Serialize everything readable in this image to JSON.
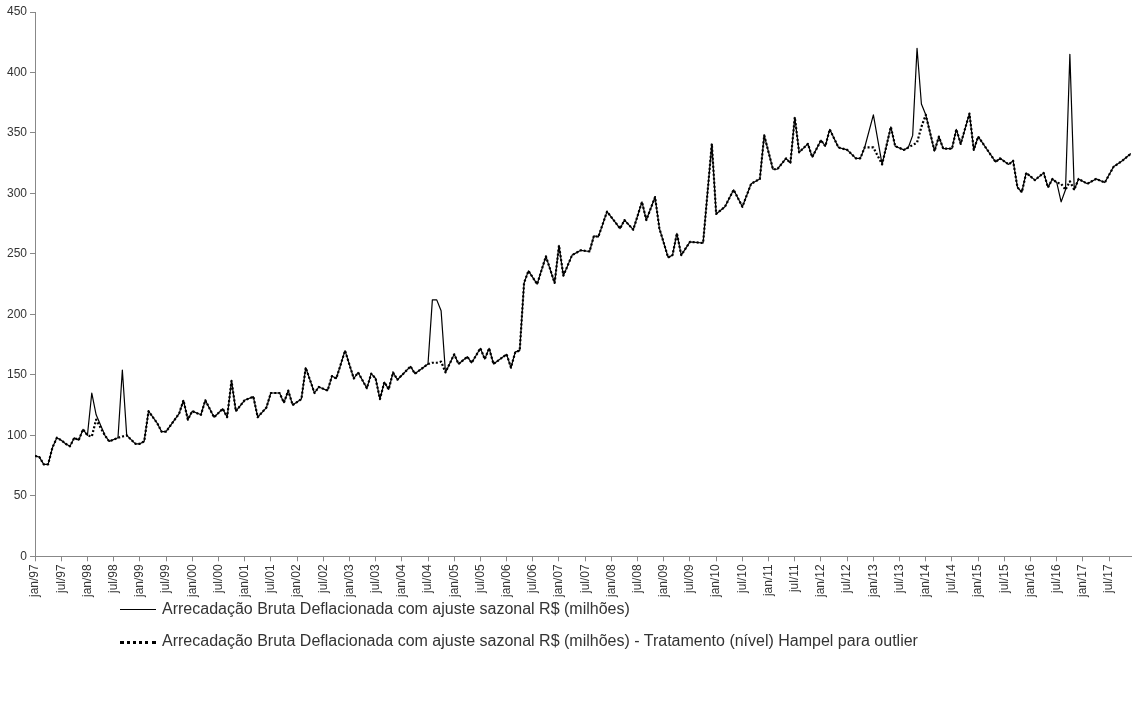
{
  "chart_data": {
    "type": "line",
    "x": [
      "1997-01",
      "1997-02",
      "1997-03",
      "1997-04",
      "1997-05",
      "1997-06",
      "1997-07",
      "1997-08",
      "1997-09",
      "1997-10",
      "1997-11",
      "1997-12",
      "1998-01",
      "1998-02",
      "1998-03",
      "1998-05",
      "1998-06",
      "1998-08",
      "1998-09",
      "1998-10",
      "1998-12",
      "1999-01",
      "1999-02",
      "1999-03",
      "1999-05",
      "1999-06",
      "1999-07",
      "1999-09",
      "1999-10",
      "1999-11",
      "1999-12",
      "2000-01",
      "2000-03",
      "2000-04",
      "2000-06",
      "2000-08",
      "2000-09",
      "2000-10",
      "2000-11",
      "2001-01",
      "2001-03",
      "2001-04",
      "2001-06",
      "2001-07",
      "2001-09",
      "2001-10",
      "2001-11",
      "2001-12",
      "2002-02",
      "2002-03",
      "2002-05",
      "2002-06",
      "2002-08",
      "2002-09",
      "2002-10",
      "2002-12",
      "2003-02",
      "2003-03",
      "2003-05",
      "2003-06",
      "2003-07",
      "2003-08",
      "2003-09",
      "2003-10",
      "2003-11",
      "2003-12",
      "2004-03",
      "2004-04",
      "2004-07",
      "2004-08",
      "2004-09",
      "2004-10",
      "2004-11",
      "2005-01",
      "2005-02",
      "2005-04",
      "2005-05",
      "2005-07",
      "2005-08",
      "2005-09",
      "2005-10",
      "2006-01",
      "2006-02",
      "2006-03",
      "2006-04",
      "2006-05",
      "2006-06",
      "2006-08",
      "2006-10",
      "2006-12",
      "2007-01",
      "2007-02",
      "2007-04",
      "2007-06",
      "2007-08",
      "2007-09",
      "2007-10",
      "2007-12",
      "2008-03",
      "2008-04",
      "2008-06",
      "2008-08",
      "2008-09",
      "2008-11",
      "2008-12",
      "2009-02",
      "2009-03",
      "2009-04",
      "2009-05",
      "2009-07",
      "2009-10",
      "2009-12",
      "2010-01",
      "2010-03",
      "2010-05",
      "2010-07",
      "2010-09",
      "2010-11",
      "2010-12",
      "2011-02",
      "2011-03",
      "2011-05",
      "2011-06",
      "2011-07",
      "2011-08",
      "2011-10",
      "2011-11",
      "2012-01",
      "2012-02",
      "2012-03",
      "2012-05",
      "2012-07",
      "2012-09",
      "2012-10",
      "2012-11",
      "2013-01",
      "2013-03",
      "2013-05",
      "2013-06",
      "2013-08",
      "2013-09",
      "2013-10",
      "2013-11",
      "2013-12",
      "2014-01",
      "2014-03",
      "2014-04",
      "2014-05",
      "2014-07",
      "2014-08",
      "2014-09",
      "2014-11",
      "2014-12",
      "2015-01",
      "2015-05",
      "2015-06",
      "2015-08",
      "2015-09",
      "2015-10",
      "2015-11",
      "2015-12",
      "2016-02",
      "2016-04",
      "2016-05",
      "2016-06",
      "2016-07",
      "2016-08",
      "2016-09",
      "2016-10",
      "2016-11",
      "2016-12",
      "2017-02",
      "2017-04",
      "2017-06",
      "2017-08",
      "2017-10",
      "2017-12"
    ],
    "series": [
      {
        "name": "Arrecadação Bruta Deflacionada com ajuste sazonal R$ (milhões)",
        "color": "#000000",
        "line_style": "solid",
        "values": [
          83,
          82,
          76,
          76,
          90,
          98,
          96,
          93,
          91,
          98,
          96,
          105,
          100,
          135,
          117,
          100,
          95,
          98,
          154,
          100,
          93,
          93,
          95,
          120,
          110,
          103,
          103,
          113,
          118,
          129,
          113,
          120,
          117,
          129,
          115,
          122,
          115,
          145,
          120,
          129,
          132,
          115,
          123,
          135,
          135,
          127,
          137,
          125,
          130,
          156,
          135,
          140,
          137,
          149,
          147,
          170,
          147,
          152,
          139,
          151,
          147,
          130,
          144,
          138,
          152,
          146,
          157,
          151,
          159,
          212,
          212,
          203,
          152,
          167,
          159,
          165,
          160,
          172,
          163,
          172,
          159,
          167,
          156,
          169,
          170,
          226,
          236,
          225,
          248,
          226,
          257,
          232,
          249,
          253,
          252,
          265,
          264,
          285,
          271,
          278,
          270,
          293,
          278,
          297,
          271,
          247,
          249,
          267,
          249,
          260,
          259,
          341,
          283,
          289,
          303,
          289,
          308,
          312,
          348,
          320,
          320,
          329,
          325,
          363,
          334,
          341,
          330,
          344,
          339,
          353,
          338,
          336,
          329,
          329,
          338,
          365,
          324,
          355,
          339,
          336,
          338,
          348,
          420,
          374,
          365,
          335,
          347,
          337,
          337,
          353,
          341,
          366,
          336,
          347,
          326,
          329,
          324,
          327,
          305,
          301,
          317,
          311,
          317,
          305,
          312,
          309,
          293,
          303,
          415,
          303,
          312,
          308,
          312,
          309,
          322,
          327,
          333
        ]
      },
      {
        "name": "Arrecadação Bruta Deflacionada com ajuste sazonal R$ (milhões) - Tratamento (nível) Hampel para outlier",
        "color": "#000000",
        "line_style": "dotted",
        "values": [
          83,
          82,
          76,
          76,
          90,
          98,
          96,
          93,
          91,
          98,
          96,
          105,
          100,
          99,
          113,
          100,
          95,
          98,
          99,
          100,
          93,
          93,
          95,
          120,
          110,
          103,
          103,
          113,
          118,
          129,
          113,
          120,
          117,
          129,
          115,
          122,
          115,
          145,
          120,
          129,
          132,
          115,
          123,
          135,
          135,
          127,
          137,
          125,
          130,
          156,
          135,
          140,
          137,
          149,
          147,
          170,
          147,
          152,
          139,
          151,
          147,
          130,
          144,
          138,
          152,
          146,
          157,
          151,
          159,
          160,
          160,
          161,
          152,
          167,
          159,
          165,
          160,
          172,
          163,
          172,
          159,
          167,
          156,
          169,
          170,
          226,
          236,
          225,
          248,
          226,
          257,
          232,
          249,
          253,
          252,
          265,
          264,
          285,
          271,
          278,
          270,
          293,
          278,
          297,
          271,
          247,
          249,
          267,
          249,
          260,
          259,
          341,
          283,
          289,
          303,
          289,
          308,
          312,
          348,
          320,
          320,
          329,
          325,
          363,
          334,
          341,
          330,
          344,
          339,
          353,
          338,
          336,
          329,
          329,
          338,
          338,
          324,
          355,
          339,
          336,
          338,
          340,
          342,
          355,
          365,
          335,
          347,
          337,
          337,
          353,
          341,
          366,
          336,
          347,
          326,
          329,
          324,
          327,
          305,
          301,
          317,
          311,
          317,
          305,
          312,
          309,
          308,
          303,
          310,
          303,
          312,
          308,
          312,
          309,
          322,
          327,
          333
        ]
      }
    ],
    "xlim": [
      "1997-01",
      "2017-12"
    ],
    "xticks": [
      {
        "value": "1997-01",
        "label": "jan/97"
      },
      {
        "value": "1997-07",
        "label": "jul/97"
      },
      {
        "value": "1998-01",
        "label": "jan/98"
      },
      {
        "value": "1998-07",
        "label": "jul/98"
      },
      {
        "value": "1999-01",
        "label": "jan/99"
      },
      {
        "value": "1999-07",
        "label": "jul/99"
      },
      {
        "value": "2000-01",
        "label": "jan/00"
      },
      {
        "value": "2000-07",
        "label": "jul/00"
      },
      {
        "value": "2001-01",
        "label": "jan/01"
      },
      {
        "value": "2001-07",
        "label": "jul/01"
      },
      {
        "value": "2002-01",
        "label": "jan/02"
      },
      {
        "value": "2002-07",
        "label": "jul/02"
      },
      {
        "value": "2003-01",
        "label": "jan/03"
      },
      {
        "value": "2003-07",
        "label": "jul/03"
      },
      {
        "value": "2004-01",
        "label": "jan/04"
      },
      {
        "value": "2004-07",
        "label": "jul/04"
      },
      {
        "value": "2005-01",
        "label": "jan/05"
      },
      {
        "value": "2005-07",
        "label": "jul/05"
      },
      {
        "value": "2006-01",
        "label": "jan/06"
      },
      {
        "value": "2006-07",
        "label": "jul/06"
      },
      {
        "value": "2007-01",
        "label": "jan/07"
      },
      {
        "value": "2007-07",
        "label": "jul/07"
      },
      {
        "value": "2008-01",
        "label": "jan/08"
      },
      {
        "value": "2008-07",
        "label": "jul/08"
      },
      {
        "value": "2009-01",
        "label": "jan/09"
      },
      {
        "value": "2009-07",
        "label": "jul/09"
      },
      {
        "value": "2010-01",
        "label": "jan/10"
      },
      {
        "value": "2010-07",
        "label": "jul/10"
      },
      {
        "value": "2011-01",
        "label": "jan/11"
      },
      {
        "value": "2011-07",
        "label": "jul/11"
      },
      {
        "value": "2012-01",
        "label": "jan/12"
      },
      {
        "value": "2012-07",
        "label": "jul/12"
      },
      {
        "value": "2013-01",
        "label": "jan/13"
      },
      {
        "value": "2013-07",
        "label": "jul/13"
      },
      {
        "value": "2014-01",
        "label": "jan/14"
      },
      {
        "value": "2014-07",
        "label": "jul/14"
      },
      {
        "value": "2015-01",
        "label": "jan/15"
      },
      {
        "value": "2015-07",
        "label": "jul/15"
      },
      {
        "value": "2016-01",
        "label": "jan/16"
      },
      {
        "value": "2016-07",
        "label": "jul/16"
      },
      {
        "value": "2017-01",
        "label": "jan/17"
      },
      {
        "value": "2017-07",
        "label": "jul/17"
      }
    ],
    "ylim": [
      0,
      450
    ],
    "yticks": [
      0,
      50,
      100,
      150,
      200,
      250,
      300,
      350,
      400,
      450
    ],
    "grid": false,
    "legend": "bottom",
    "marker": "none"
  }
}
